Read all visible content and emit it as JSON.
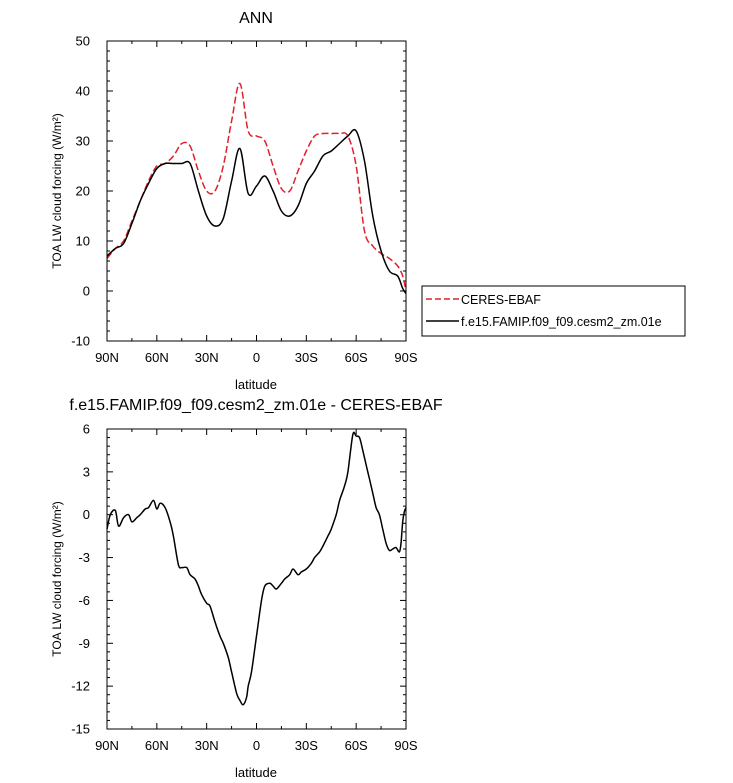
{
  "chart_data": [
    {
      "type": "line",
      "title": "ANN",
      "xlabel": "latitude",
      "ylabel": "TOA LW cloud forcing (W/m²)",
      "xlim": [
        90,
        -90
      ],
      "ylim": [
        -10,
        50
      ],
      "xticks": [
        90,
        60,
        30,
        0,
        -30,
        -60,
        -90
      ],
      "xtick_labels": [
        "90N",
        "60N",
        "30N",
        "0",
        "30S",
        "60S",
        "90S"
      ],
      "yticks": [
        -10,
        0,
        10,
        20,
        30,
        40,
        50
      ],
      "ytick_labels": [
        "-10",
        "0",
        "10",
        "20",
        "30",
        "40",
        "50"
      ],
      "legend": "right",
      "series": [
        {
          "name": "CERES-EBAF",
          "color": "#e0202a",
          "dash": "dashed",
          "x": [
            90,
            85,
            80,
            75,
            70,
            65,
            60,
            55,
            50,
            45,
            40,
            35,
            30,
            25,
            20,
            15,
            10,
            5,
            0,
            -5,
            -10,
            -15,
            -20,
            -25,
            -30,
            -35,
            -40,
            -45,
            -50,
            -55,
            -60,
            -65,
            -70,
            -75,
            -80,
            -85,
            -88,
            -90
          ],
          "y": [
            6.5,
            8.5,
            10,
            14,
            18,
            22,
            25,
            25.5,
            27,
            29.5,
            29,
            24,
            20,
            20,
            25,
            34,
            41.5,
            32,
            31,
            30,
            25,
            20.5,
            20,
            24,
            28,
            31,
            31.5,
            31.5,
            31.5,
            31,
            25,
            12,
            9,
            7.5,
            6.5,
            5,
            3,
            0
          ]
        },
        {
          "name": "f.e15.FAMIP.f09_f09.cesm2_zm.01e",
          "color": "#000000",
          "dash": "solid",
          "x": [
            90,
            85,
            80,
            75,
            70,
            65,
            60,
            55,
            50,
            45,
            40,
            35,
            30,
            25,
            20,
            15,
            10,
            5,
            0,
            -5,
            -10,
            -15,
            -20,
            -25,
            -30,
            -35,
            -40,
            -45,
            -50,
            -55,
            -60,
            -65,
            -70,
            -75,
            -80,
            -85,
            -88,
            -90
          ],
          "y": [
            7,
            8.5,
            9.5,
            13.5,
            18,
            21.5,
            24.5,
            25.5,
            25.5,
            25.5,
            25.5,
            20,
            15,
            13,
            14.5,
            22,
            28.5,
            19.5,
            21,
            23,
            20,
            16,
            15,
            17,
            21.5,
            24,
            27,
            28,
            29.5,
            31,
            32,
            26,
            15,
            8,
            4,
            3,
            0.5,
            -0.5
          ]
        }
      ]
    },
    {
      "type": "line",
      "title": "f.e15.FAMIP.f09_f09.cesm2_zm.01e - CERES-EBAF",
      "xlabel": "latitude",
      "ylabel": "TOA LW cloud forcing (W/m²)",
      "xlim": [
        90,
        -90
      ],
      "ylim": [
        -15,
        6
      ],
      "xticks": [
        90,
        60,
        30,
        0,
        -30,
        -60,
        -90
      ],
      "xtick_labels": [
        "90N",
        "60N",
        "30N",
        "0",
        "30S",
        "60S",
        "90S"
      ],
      "yticks": [
        -15,
        -12,
        -9,
        -6,
        -3,
        0,
        3,
        6
      ],
      "ytick_labels": [
        "-15",
        "-12",
        "-9",
        "-6",
        "-3",
        "0",
        "3",
        "6"
      ],
      "series": [
        {
          "color": "#000000",
          "dash": "solid",
          "x": [
            90,
            88,
            85,
            83,
            80,
            77,
            75,
            72,
            70,
            67,
            65,
            62,
            60,
            58,
            55,
            52,
            50,
            47,
            45,
            42,
            40,
            37,
            35,
            33,
            30,
            28,
            25,
            22,
            20,
            17,
            15,
            12,
            10,
            8,
            6,
            5,
            3,
            0,
            -3,
            -5,
            -8,
            -10,
            -12,
            -15,
            -17,
            -20,
            -22,
            -25,
            -27,
            -30,
            -33,
            -35,
            -38,
            -40,
            -43,
            -45,
            -48,
            -50,
            -53,
            -55,
            -58,
            -60,
            -62,
            -64,
            -66,
            -68,
            -70,
            -72,
            -74,
            -76,
            -78,
            -80,
            -82,
            -84,
            -86,
            -87,
            -88,
            -89,
            -90
          ],
          "y": [
            -1,
            0,
            0.3,
            -0.8,
            -0.2,
            0,
            -0.5,
            -0.2,
            0,
            0.4,
            0.5,
            1,
            0.4,
            0.8,
            0.5,
            -0.5,
            -1.5,
            -3.5,
            -3.7,
            -3.7,
            -4.2,
            -4.5,
            -5,
            -5.6,
            -6.2,
            -6.4,
            -7.5,
            -8.5,
            -9,
            -10,
            -11,
            -12.5,
            -13,
            -13.3,
            -12.8,
            -12,
            -11,
            -8.5,
            -6,
            -5,
            -4.8,
            -5,
            -5.2,
            -4.8,
            -4.5,
            -4.2,
            -3.8,
            -4.2,
            -4,
            -3.8,
            -3.4,
            -3,
            -2.6,
            -2.2,
            -1.5,
            -1,
            0,
            1,
            2,
            3,
            5.6,
            5.5,
            5.4,
            4.5,
            3.5,
            2.5,
            1.5,
            0.5,
            0,
            -1,
            -2,
            -2.5,
            -2.4,
            -2.3,
            -2.6,
            -2,
            -0.5,
            0.2,
            0.5
          ]
        }
      ]
    }
  ]
}
